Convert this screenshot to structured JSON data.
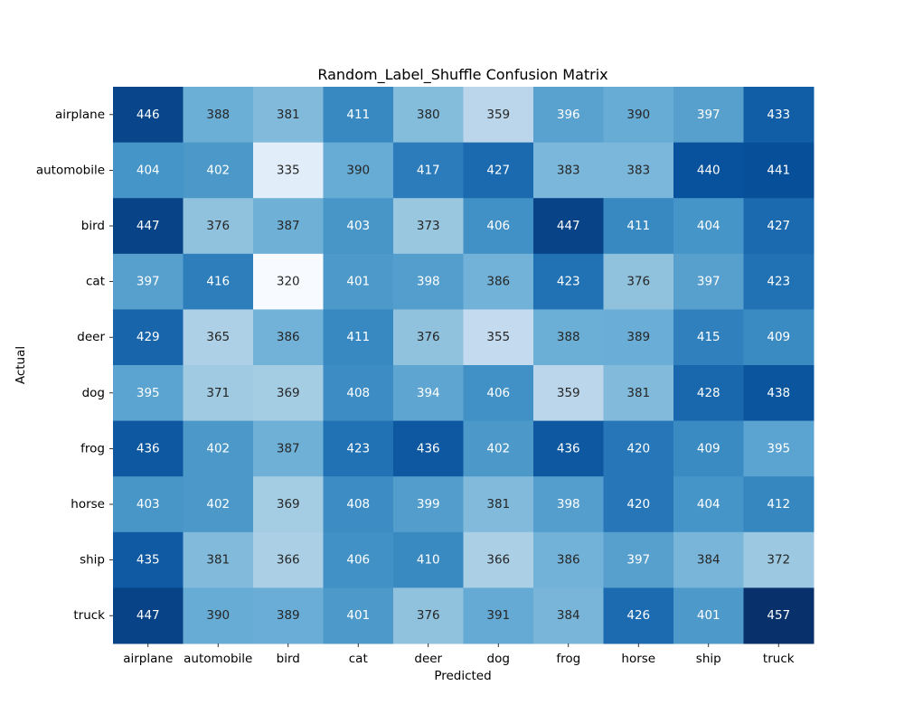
{
  "chart_data": {
    "type": "heatmap",
    "title": "Random_Label_Shuffle Confusion Matrix",
    "xlabel": "Predicted",
    "ylabel": "Actual",
    "x_categories": [
      "airplane",
      "automobile",
      "bird",
      "cat",
      "deer",
      "dog",
      "frog",
      "horse",
      "ship",
      "truck"
    ],
    "y_categories": [
      "airplane",
      "automobile",
      "bird",
      "cat",
      "deer",
      "dog",
      "frog",
      "horse",
      "ship",
      "truck"
    ],
    "colormap": "Blues",
    "colorbar": false,
    "values": [
      [
        446,
        388,
        381,
        411,
        380,
        359,
        396,
        390,
        397,
        433
      ],
      [
        404,
        402,
        335,
        390,
        417,
        427,
        383,
        383,
        440,
        441
      ],
      [
        447,
        376,
        387,
        403,
        373,
        406,
        447,
        411,
        404,
        427
      ],
      [
        397,
        416,
        320,
        401,
        398,
        386,
        423,
        376,
        397,
        423
      ],
      [
        429,
        365,
        386,
        411,
        376,
        355,
        388,
        389,
        415,
        409
      ],
      [
        395,
        371,
        369,
        408,
        394,
        406,
        359,
        381,
        428,
        438
      ],
      [
        436,
        402,
        387,
        423,
        436,
        402,
        436,
        420,
        409,
        395
      ],
      [
        403,
        402,
        369,
        408,
        399,
        381,
        398,
        420,
        404,
        412
      ],
      [
        435,
        381,
        366,
        406,
        410,
        366,
        386,
        397,
        384,
        372
      ],
      [
        447,
        390,
        389,
        401,
        376,
        391,
        384,
        426,
        401,
        457
      ]
    ]
  }
}
